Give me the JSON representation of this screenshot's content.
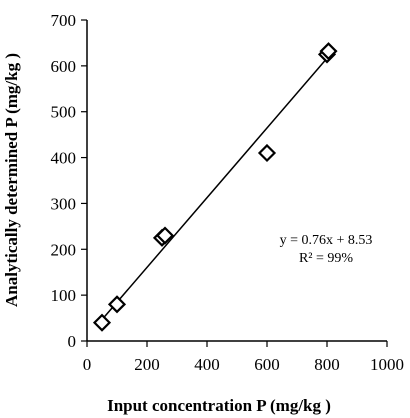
{
  "chart_data": {
    "type": "scatter",
    "xlabel": "Input concentration P (mg/kg )",
    "ylabel": "Analytically determined P (mg/kg )",
    "xlim": [
      0,
      1000
    ],
    "ylim": [
      0,
      700
    ],
    "x_ticks": [
      "0",
      "200",
      "400",
      "600",
      "800",
      "1000"
    ],
    "y_ticks": [
      "0",
      "100",
      "200",
      "300",
      "400",
      "500",
      "600",
      "700"
    ],
    "grid": false,
    "marker": "diamond-open",
    "series": [
      {
        "x": [
          50,
          100,
          250,
          260,
          600,
          800,
          805
        ],
        "y": [
          40,
          80,
          225,
          230,
          410,
          625,
          632
        ]
      }
    ],
    "trendline": {
      "slope": 0.76,
      "intercept": 8.53,
      "x_range": [
        40,
        810
      ]
    },
    "annotations": [
      "y = 0.76x + 8.53",
      "R² = 99%"
    ]
  }
}
